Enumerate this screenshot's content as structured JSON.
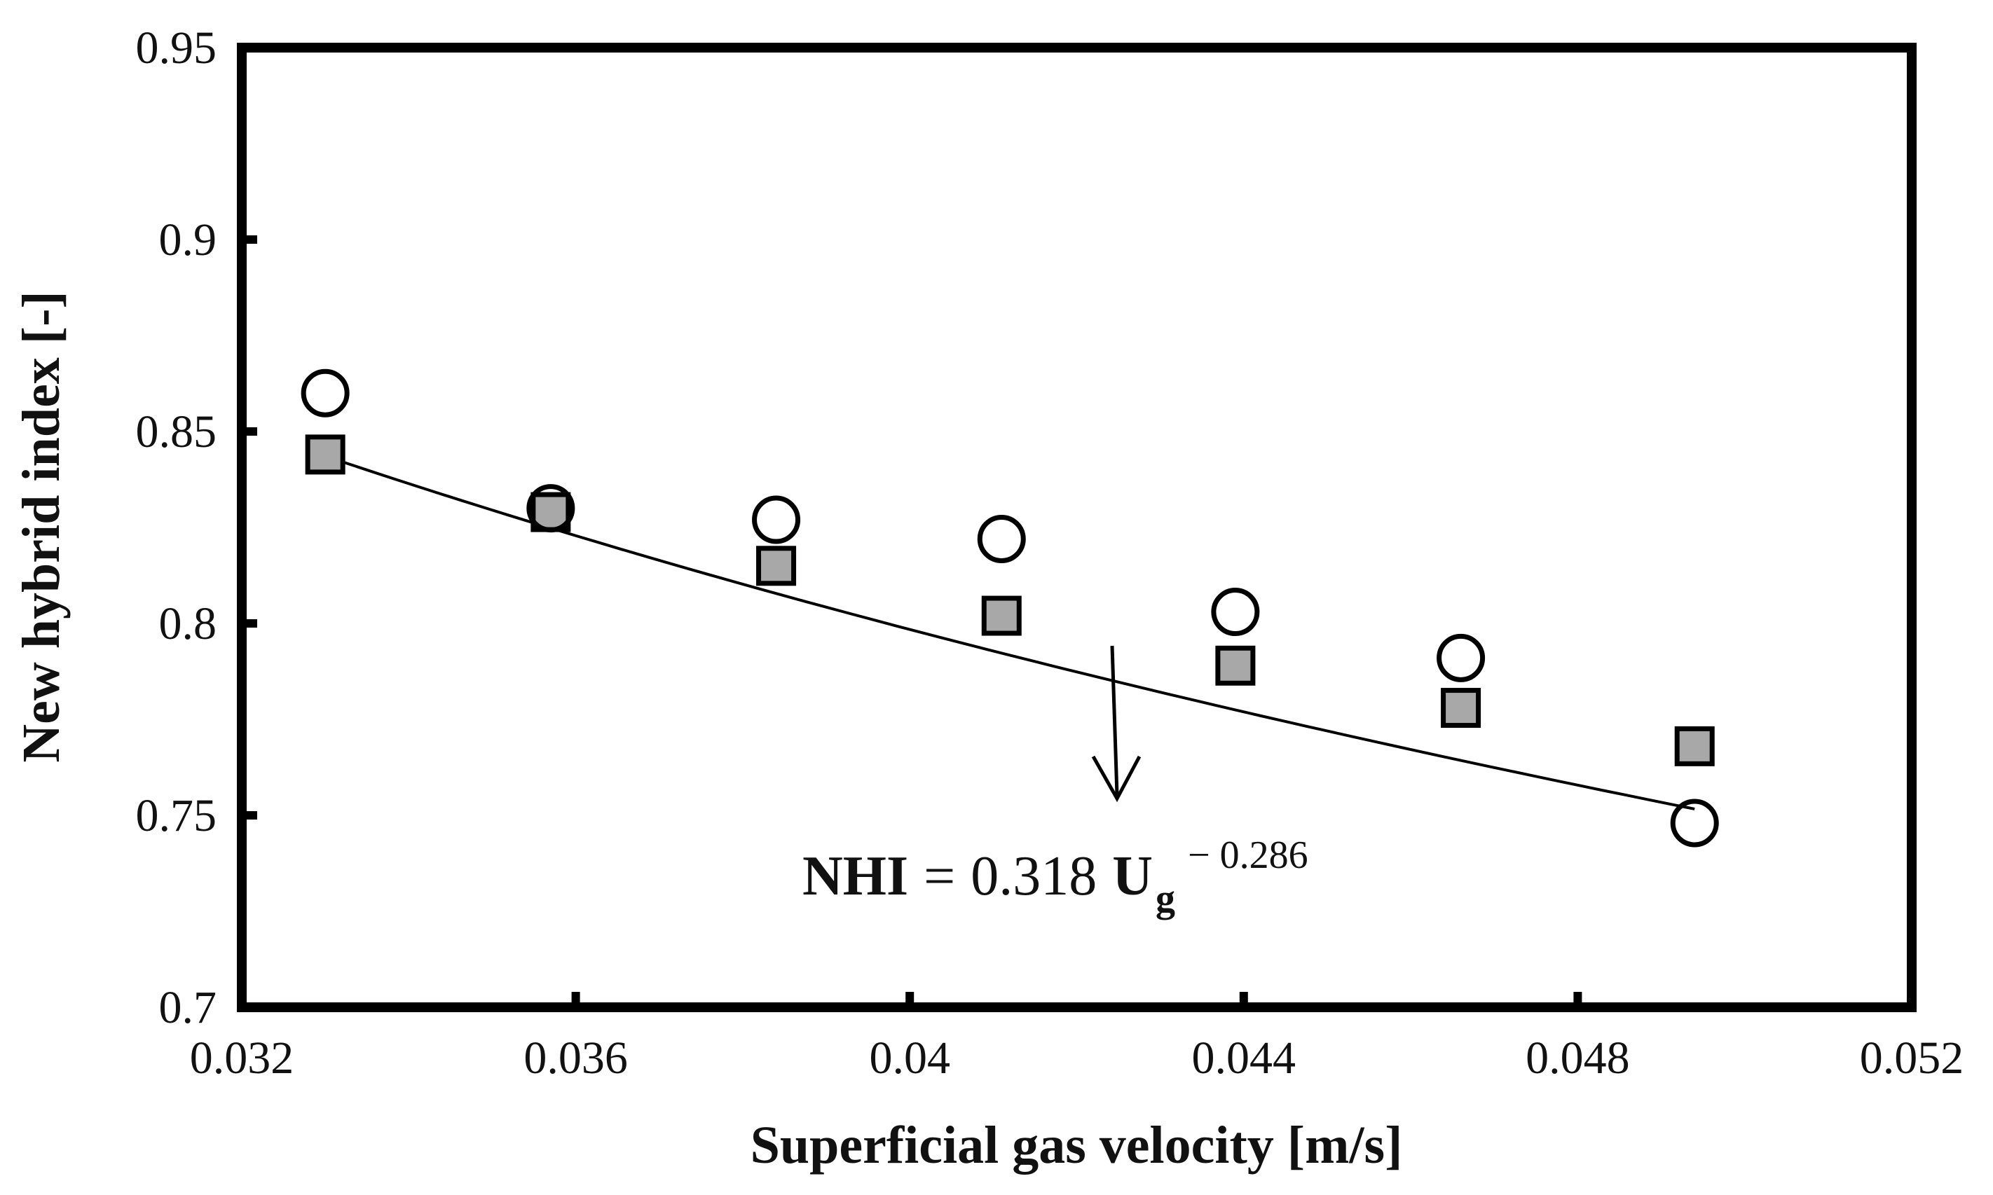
{
  "chart_data": {
    "type": "scatter",
    "title": "",
    "xlabel": "Superficial gas velocity [m/s]",
    "ylabel": "New hybrid index [-]",
    "xlim": [
      0.032,
      0.052
    ],
    "ylim": [
      0.7,
      0.95
    ],
    "x_ticks": [
      0.032,
      0.036,
      0.04,
      0.044,
      0.048,
      0.052
    ],
    "x_tick_labels": [
      "0.032",
      "0.036",
      "0.04",
      "0.044",
      "0.048",
      "0.052"
    ],
    "y_ticks": [
      0.7,
      0.75,
      0.8,
      0.85,
      0.9,
      0.95
    ],
    "y_tick_labels": [
      "0.7",
      "0.75",
      "0.8",
      "0.85",
      "0.9",
      "0.95"
    ],
    "grid": false,
    "series": [
      {
        "name": "open-circles",
        "marker": "circle",
        "fill": "#ffffff",
        "x": [
          0.033,
          0.0357,
          0.0384,
          0.0411,
          0.0439,
          0.0466,
          0.0494
        ],
        "y": [
          0.86,
          0.83,
          0.827,
          0.822,
          0.803,
          0.791,
          0.748
        ]
      },
      {
        "name": "gray-squares",
        "marker": "square",
        "fill": "#a8a8a8",
        "x": [
          0.033,
          0.0357,
          0.0384,
          0.0411,
          0.0439,
          0.0466,
          0.0494
        ],
        "y": [
          0.844,
          0.829,
          0.815,
          0.802,
          0.789,
          0.778,
          0.768
        ]
      }
    ],
    "fit": {
      "type": "power",
      "coefficient": 0.318,
      "exponent": -0.286,
      "x_range": [
        0.033,
        0.0494
      ]
    },
    "annotation": {
      "lhs": "NHI",
      "equals": "=",
      "coefficient_text": "0.318",
      "variable": "U",
      "subscript": "g",
      "exponent_text": "− 0.286"
    }
  },
  "colors": {
    "axis": "#000000",
    "square_fill": "#a8a8a8",
    "circle_fill": "#ffffff",
    "line": "#000000"
  }
}
